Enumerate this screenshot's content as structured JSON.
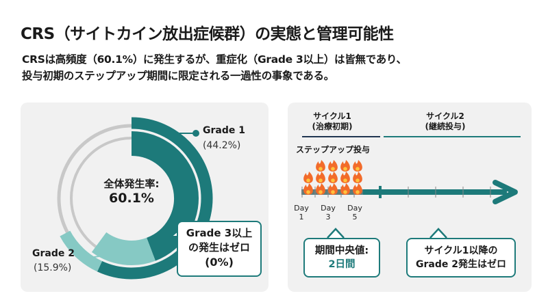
{
  "title": "CRS（サイトカイン放出症候群）の実態と管理可能性",
  "subtitle": [
    "CRSは高頻度（60.1%）に発生するが、重症化（Grade 3以上）は皆無であり、",
    "投与初期のステップアップ期間に限定される一過性の事象である。"
  ],
  "donut": {
    "center_label": "全体発生率:",
    "center_value": "60.1%",
    "grade1": {
      "label": "Grade 1",
      "value": "(44.2%)",
      "percent": 44.2
    },
    "grade2": {
      "label": "Grade 2",
      "value": "(15.9%)",
      "percent": 15.9
    },
    "callout": [
      "Grade 3以上",
      "の発生はゼロ",
      "(0%)"
    ]
  },
  "timeline": {
    "cycle1": [
      "サイクル1",
      "(治療初期)"
    ],
    "cycle2": [
      "サイクル2",
      "(継続投与)"
    ],
    "stepup": "ステップアップ投与",
    "days": [
      [
        "Day",
        "1"
      ],
      [
        "Day",
        "3"
      ],
      [
        "Day",
        "5"
      ]
    ],
    "callout1": [
      "期間中央値:",
      "2日間"
    ],
    "callout2": [
      "サイクル1以降の",
      "Grade 2発生はゼロ"
    ]
  },
  "colors": {
    "teal": "#1d7a7a",
    "light_teal": "#86c9c4",
    "gray": "#c8c8c8",
    "navy": "#1f3550",
    "flame": "#f26b2a"
  }
}
